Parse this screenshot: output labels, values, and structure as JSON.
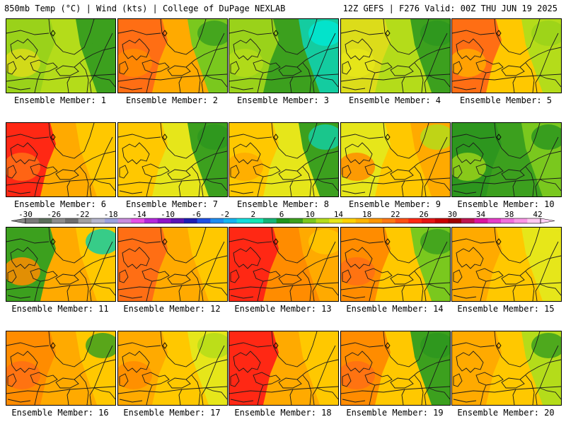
{
  "header": {
    "left": "850mb Temp (°C) | Wind (kts) | College of DuPage NEXLAB",
    "right": "12Z GEFS | F276 Valid: 00Z THU JUN 19 2025"
  },
  "panels": [
    {
      "label": "Ensemble Member: 1",
      "base": "#b4dc1a",
      "west": "#9ad21a",
      "east": "#3ca01e",
      "hot": "#dcdc1a",
      "cold": "#3ca01e"
    },
    {
      "label": "Ensemble Member: 2",
      "base": "#ffaa00",
      "west": "#ff6e14",
      "east": "#7ac81e",
      "hot": "#ff8c00",
      "cold": "#3ca01e"
    },
    {
      "label": "Ensemble Member: 3",
      "base": "#3ca01e",
      "west": "#9ad21a",
      "east": "#14cca0",
      "hot": "#b4dc1a",
      "cold": "#00e6d2"
    },
    {
      "label": "Ensemble Member: 4",
      "base": "#b4dc1a",
      "west": "#dcdc1a",
      "east": "#3ca01e",
      "hot": "#e6e61a",
      "cold": "#2d961e"
    },
    {
      "label": "Ensemble Member: 5",
      "base": "#ffc800",
      "west": "#ff6e14",
      "east": "#b4dc1a",
      "hot": "#ffaa00",
      "cold": "#9ad21a"
    },
    {
      "label": "Ensemble Member: 6",
      "base": "#ffaa00",
      "west": "#ff2814",
      "east": "#ffc800",
      "hot": "#ff6e14",
      "cold": "#ffc800"
    },
    {
      "label": "Ensemble Member: 7",
      "base": "#e6e61a",
      "west": "#ffc800",
      "east": "#3ca01e",
      "hot": "#ffc800",
      "cold": "#2d961e"
    },
    {
      "label": "Ensemble Member: 8",
      "base": "#e6e61a",
      "west": "#ffc800",
      "east": "#3ca01e",
      "hot": "#ffaa00",
      "cold": "#14cca0"
    },
    {
      "label": "Ensemble Member: 9",
      "base": "#ffc800",
      "west": "#e6e61a",
      "east": "#ffaa00",
      "hot": "#ff8c00",
      "cold": "#b4dc1a"
    },
    {
      "label": "Ensemble Member: 10",
      "base": "#3ca01e",
      "west": "#2d961e",
      "east": "#7ac81e",
      "hot": "#9ad21a",
      "cold": "#2d961e"
    },
    {
      "label": "Ensemble Member: 11",
      "base": "#ffaa00",
      "west": "#3ca01e",
      "east": "#ffc800",
      "hot": "#ff8c00",
      "cold": "#14cca0"
    },
    {
      "label": "Ensemble Member: 12",
      "base": "#ffaa00",
      "west": "#ff6e14",
      "east": "#ffc800",
      "hot": "#ff6e14",
      "cold": "#ffc800"
    },
    {
      "label": "Ensemble Member: 13",
      "base": "#ff8c00",
      "west": "#ff2814",
      "east": "#ffaa00",
      "hot": "#ff2814",
      "cold": "#ffc800"
    },
    {
      "label": "Ensemble Member: 14",
      "base": "#ffc800",
      "west": "#ff8c00",
      "east": "#7ac81e",
      "hot": "#ff6e14",
      "cold": "#3ca01e"
    },
    {
      "label": "Ensemble Member: 15",
      "base": "#ffc800",
      "west": "#ffaa00",
      "east": "#e6e61a",
      "hot": "#ffaa00",
      "cold": "#e6e61a"
    },
    {
      "label": "Ensemble Member: 16",
      "base": "#ffaa00",
      "west": "#ff8c00",
      "east": "#ffc800",
      "hot": "#ff6e14",
      "cold": "#3ca01e"
    },
    {
      "label": "Ensemble Member: 17",
      "base": "#ffc800",
      "west": "#ffaa00",
      "east": "#e6e61a",
      "hot": "#ff8c00",
      "cold": "#b4dc1a"
    },
    {
      "label": "Ensemble Member: 18",
      "base": "#ffaa00",
      "west": "#ff2814",
      "east": "#ffc800",
      "hot": "#ff2814",
      "cold": "#ffc800"
    },
    {
      "label": "Ensemble Member: 19",
      "base": "#ffc800",
      "west": "#ff8c00",
      "east": "#3ca01e",
      "hot": "#ff6e14",
      "cold": "#2d961e"
    },
    {
      "label": "Ensemble Member: 20",
      "base": "#ffc800",
      "west": "#ffaa00",
      "east": "#b4dc1a",
      "hot": "#ffaa00",
      "cold": "#3ca01e"
    }
  ],
  "colorbar": {
    "labels": [
      "-30",
      "-26",
      "-22",
      "-18",
      "-14",
      "-10",
      "-6",
      "-2",
      "2",
      "6",
      "10",
      "14",
      "18",
      "22",
      "26",
      "30",
      "34",
      "38",
      "42"
    ],
    "colors": [
      "#7a7a7a",
      "#5a6e5a",
      "#8c8c8c",
      "#6e6e6e",
      "#a0a0a0",
      "#b4b4cc",
      "#9aa0dc",
      "#c88cdc",
      "#e650e6",
      "#b428dc",
      "#8c14c8",
      "#5a14b4",
      "#1e1eb4",
      "#1e50e6",
      "#1e8cf0",
      "#14b4f0",
      "#14dcdc",
      "#14e6b4",
      "#14b478",
      "#1e961e",
      "#3ca01e",
      "#7ac81e",
      "#b4dc1a",
      "#e6e61a",
      "#ffd200",
      "#ffb400",
      "#ff9600",
      "#ff7814",
      "#ff5014",
      "#ff2814",
      "#e61414",
      "#c80000",
      "#a00000",
      "#be1450",
      "#dc14a0",
      "#e63cc8",
      "#f06edc",
      "#fa96e6",
      "#ffc8f0"
    ]
  }
}
